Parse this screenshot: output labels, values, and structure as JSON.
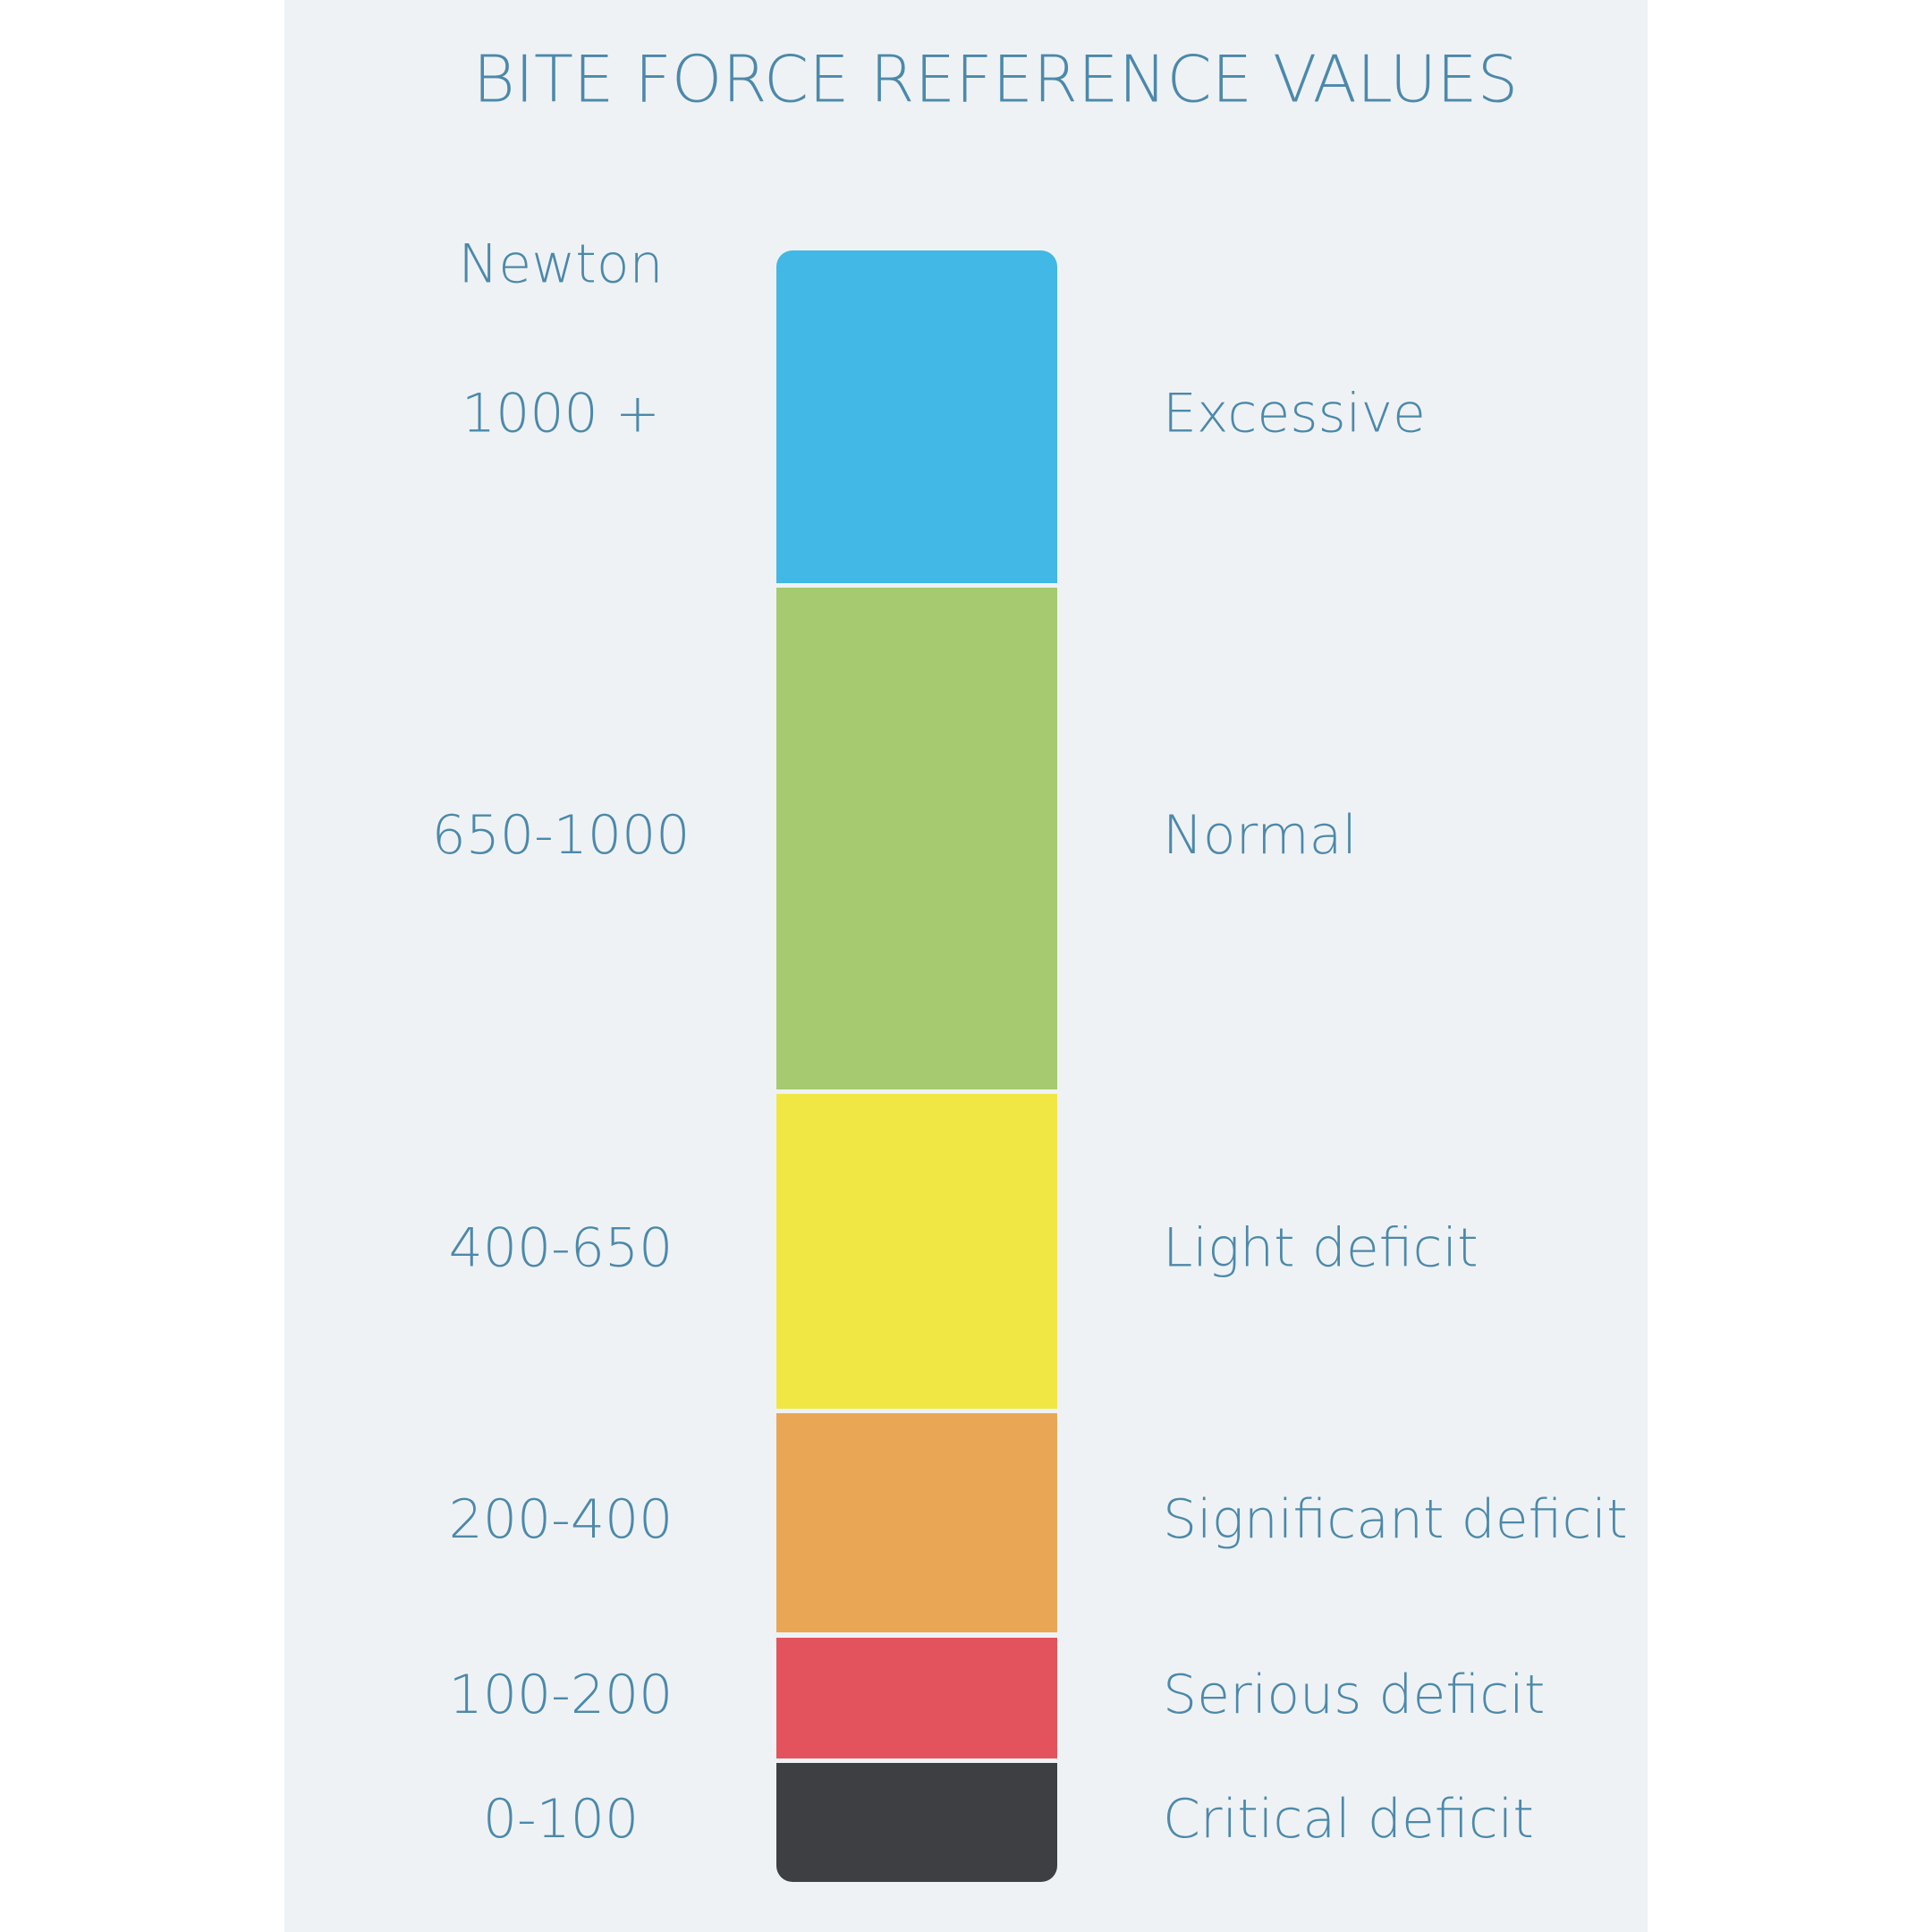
{
  "title": "BITE FORCE REFERENCE VALUES",
  "unit": "Newton",
  "bands": [
    {
      "range": "1000 +",
      "label": "Excessive",
      "color": "#41b8e6"
    },
    {
      "range": "650-1000",
      "label": "Normal",
      "color": "#a5ca6f"
    },
    {
      "range": "400-650",
      "label": "Light deficit",
      "color": "#f0e745"
    },
    {
      "range": "200-400",
      "label": "Significant deficit",
      "color": "#e9a755"
    },
    {
      "range": "100-200",
      "label": "Serious deficit",
      "color": "#e2535d"
    },
    {
      "range": "0-100",
      "label": "Critical deficit",
      "color": "#3e3f43"
    }
  ]
}
